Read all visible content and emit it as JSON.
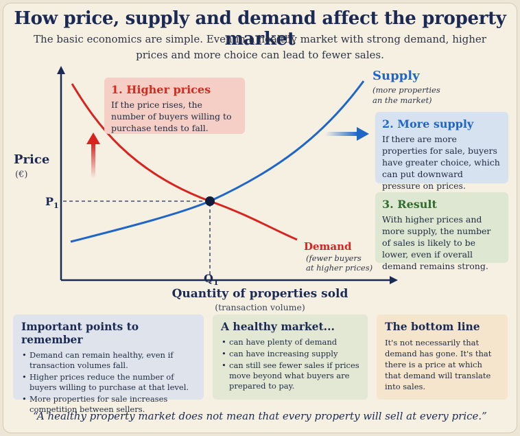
{
  "title": "How price, supply and demand affect the property market",
  "subtitle": "The basic economics are simple.  Even in a healthy market with strong demand, higher prices and more choice can lead to fewer sales.",
  "axes": {
    "y_label": "Price",
    "y_unit": "(€)",
    "x_label": "Quantity of properties sold",
    "x_sub": "(transaction volume)",
    "p_label": "P",
    "p_sub": "1",
    "q_label": "Q",
    "q_sub": "1"
  },
  "curves": {
    "supply_label": "Supply",
    "supply_note_1": "(more properties",
    "supply_note_2": "an the market)",
    "demand_label": "Demand",
    "demand_note_1": "(fewer buyers",
    "demand_note_2": "at higher prices)",
    "supply_color": "#1f66c7",
    "demand_color": "#d9231f"
  },
  "callouts": {
    "higher_prices": {
      "title": "1. Higher prices",
      "text": "If the price rises, the number of buyers willing to purchase tends to fall."
    },
    "more_supply": {
      "title": "2. More supply",
      "text": "If there are more properties for sale, buyers have greater choice, which can put downward pressure on prices."
    },
    "result": {
      "title": "3. Result",
      "text": "With higher prices and more supply, the number of sales is likely to be lower, even if overall demand remains strong."
    }
  },
  "panels": {
    "important": {
      "title": "Important points to remember",
      "items": [
        "Demand can remain healthy, even if transaction volumes fall.",
        "Higher prices reduce the number of buyers willing to purchase at that level.",
        "More properties for sale increases competition between sellers."
      ]
    },
    "healthy": {
      "title": "A healthy market...",
      "items": [
        "can have plenty of demand",
        "can have increasing supply",
        "can still see fewer sales if prices move beyond what buyers are prepared to pay."
      ]
    },
    "bottom_line": {
      "title": "The bottom line",
      "text": "It's not necessarily that demand has gone. It's that there is a price at which that demand will translate into sales."
    }
  },
  "quote": "“A healthy property market does not mean that every property will sell at every price.”"
}
